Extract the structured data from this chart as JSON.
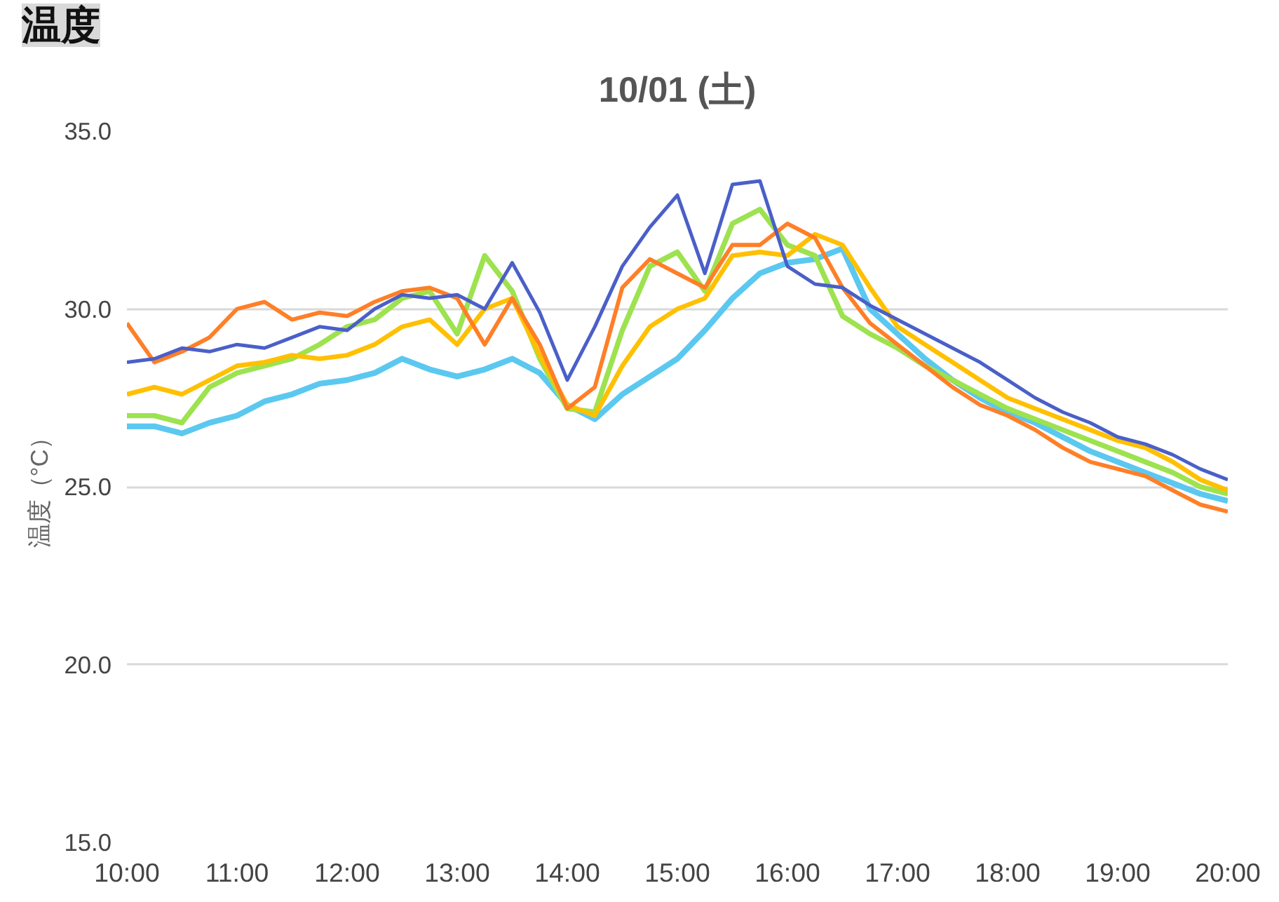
{
  "chart_data": {
    "type": "line",
    "title": "10/01 (土)",
    "ylabel": "温度（°C）",
    "annotations": [
      "温度"
    ],
    "x": [
      10,
      10.25,
      10.5,
      10.75,
      11,
      11.25,
      11.5,
      11.75,
      12,
      12.25,
      12.5,
      12.75,
      13,
      13.25,
      13.5,
      13.75,
      14,
      14.25,
      14.5,
      14.75,
      15,
      15.25,
      15.5,
      15.75,
      16,
      16.25,
      16.5,
      16.75,
      17,
      17.25,
      17.5,
      17.75,
      18,
      18.25,
      18.5,
      18.75,
      19,
      19.25,
      19.5,
      19.75,
      20
    ],
    "xlim": [
      10,
      20
    ],
    "xticks": [
      {
        "value": 10,
        "label": "10:00"
      },
      {
        "value": 11,
        "label": "11:00"
      },
      {
        "value": 12,
        "label": "12:00"
      },
      {
        "value": 13,
        "label": "13:00"
      },
      {
        "value": 14,
        "label": "14:00"
      },
      {
        "value": 15,
        "label": "15:00"
      },
      {
        "value": 16,
        "label": "16:00"
      },
      {
        "value": 17,
        "label": "17:00"
      },
      {
        "value": 18,
        "label": "18:00"
      },
      {
        "value": 19,
        "label": "19:00"
      },
      {
        "value": 20,
        "label": "20:00"
      }
    ],
    "ylim": [
      15,
      35
    ],
    "yticks": [
      {
        "value": 15,
        "label": "15.0"
      },
      {
        "value": 20,
        "label": "20.0"
      },
      {
        "value": 25,
        "label": "25.0"
      },
      {
        "value": 30,
        "label": "30.0"
      },
      {
        "value": 35,
        "label": "35.0"
      }
    ],
    "grid": "y",
    "marker": "none",
    "line_style": "solid",
    "series": [
      {
        "color": "#5bc8f0",
        "values": [
          26.7,
          26.7,
          26.5,
          26.8,
          27.0,
          27.4,
          27.6,
          27.9,
          28.0,
          28.2,
          28.6,
          28.3,
          28.1,
          28.3,
          28.6,
          28.2,
          27.3,
          26.9,
          27.6,
          28.1,
          28.6,
          29.4,
          30.3,
          31.0,
          31.3,
          31.4,
          31.7,
          30.0,
          29.3,
          28.6,
          28.0,
          27.5,
          27.1,
          26.8,
          26.4,
          26.0,
          25.7,
          25.4,
          25.1,
          24.8,
          24.6
        ]
      },
      {
        "color": "#9de24f",
        "values": [
          27.0,
          27.0,
          26.8,
          27.8,
          28.2,
          28.4,
          28.6,
          29.0,
          29.5,
          29.7,
          30.3,
          30.5,
          29.3,
          31.5,
          30.5,
          28.6,
          27.2,
          27.1,
          29.4,
          31.2,
          31.6,
          30.5,
          32.4,
          32.8,
          31.8,
          31.5,
          29.8,
          29.3,
          28.9,
          28.4,
          28.0,
          27.6,
          27.2,
          26.9,
          26.6,
          26.3,
          26.0,
          25.7,
          25.4,
          25.0,
          24.8
        ]
      },
      {
        "color": "#ffc000",
        "values": [
          27.6,
          27.8,
          27.6,
          28.0,
          28.4,
          28.5,
          28.7,
          28.6,
          28.7,
          29.0,
          29.5,
          29.7,
          29.0,
          30.0,
          30.3,
          28.7,
          27.3,
          27.0,
          28.4,
          29.5,
          30.0,
          30.3,
          31.5,
          31.6,
          31.5,
          32.1,
          31.8,
          30.6,
          29.5,
          29.0,
          28.5,
          28.0,
          27.5,
          27.2,
          26.9,
          26.6,
          26.3,
          26.1,
          25.7,
          25.2,
          24.9
        ]
      },
      {
        "color": "#ff7f27",
        "values": [
          29.6,
          28.5,
          28.8,
          29.2,
          30.0,
          30.2,
          29.7,
          29.9,
          29.8,
          30.2,
          30.5,
          30.6,
          30.3,
          29.0,
          30.3,
          29.0,
          27.2,
          27.8,
          30.6,
          31.4,
          31.0,
          30.6,
          31.8,
          31.8,
          32.4,
          32.0,
          30.6,
          29.6,
          29.0,
          28.4,
          27.8,
          27.3,
          27.0,
          26.6,
          26.1,
          25.7,
          25.5,
          25.3,
          24.9,
          24.5,
          24.3
        ]
      },
      {
        "color": "#4a5fc8",
        "values": [
          28.5,
          28.6,
          28.9,
          28.8,
          29.0,
          28.9,
          29.2,
          29.5,
          29.4,
          30.0,
          30.4,
          30.3,
          30.4,
          30.0,
          31.3,
          29.9,
          28.0,
          29.5,
          31.2,
          32.3,
          33.2,
          31.0,
          33.5,
          33.6,
          31.2,
          30.7,
          30.6,
          30.1,
          29.7,
          29.3,
          28.9,
          28.5,
          28.0,
          27.5,
          27.1,
          26.8,
          26.4,
          26.2,
          25.9,
          25.5,
          25.2
        ]
      }
    ]
  }
}
